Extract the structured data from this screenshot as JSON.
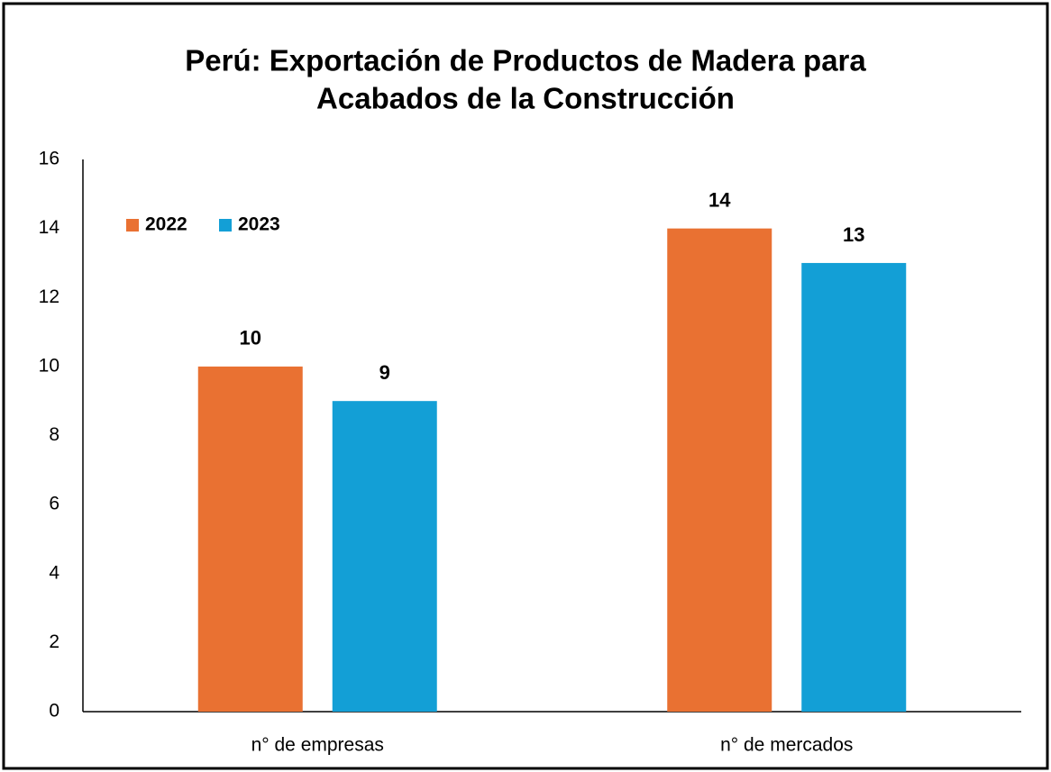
{
  "chart_data": {
    "type": "bar",
    "title": [
      "Perú: Exportación de Productos de Madera para",
      "Acabados de la Construcción"
    ],
    "categories": [
      "n° de empresas",
      "n° de mercados"
    ],
    "series": [
      {
        "name": "2022",
        "color": "#E97132",
        "values": [
          10,
          14
        ]
      },
      {
        "name": "2023",
        "color": "#139FD6",
        "values": [
          9,
          13
        ]
      }
    ],
    "ylim": [
      0,
      16
    ],
    "yticks": [
      0,
      2,
      4,
      6,
      8,
      10,
      12,
      14,
      16
    ],
    "legend": "upper left",
    "grid": false
  }
}
